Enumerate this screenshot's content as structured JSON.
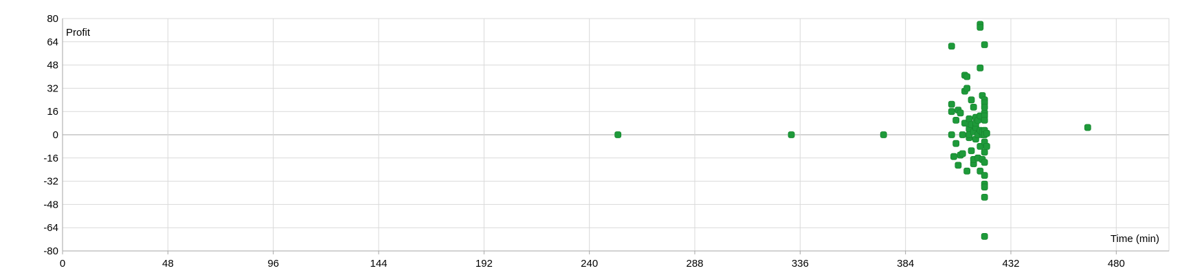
{
  "chart_data": {
    "type": "scatter",
    "title": "",
    "xlabel": "Time (min)",
    "ylabel": "Profit",
    "xlim": [
      0,
      504
    ],
    "ylim": [
      -80,
      80
    ],
    "x_ticks": [
      0,
      48,
      96,
      144,
      192,
      240,
      288,
      336,
      384,
      432,
      480
    ],
    "y_ticks": [
      80,
      64,
      48,
      32,
      16,
      0,
      -16,
      -32,
      -48,
      -64,
      -80
    ],
    "grid": true,
    "legend": "none",
    "marker_color": "#1e9a3a",
    "points": [
      {
        "x": 253,
        "y": 0
      },
      {
        "x": 332,
        "y": 0
      },
      {
        "x": 374,
        "y": 0
      },
      {
        "x": 405,
        "y": 61
      },
      {
        "x": 405,
        "y": 21
      },
      {
        "x": 405,
        "y": 16
      },
      {
        "x": 405,
        "y": 0
      },
      {
        "x": 406,
        "y": -15
      },
      {
        "x": 407,
        "y": 10
      },
      {
        "x": 407,
        "y": -6
      },
      {
        "x": 408,
        "y": 17
      },
      {
        "x": 408,
        "y": -21
      },
      {
        "x": 409,
        "y": 15
      },
      {
        "x": 409,
        "y": -14
      },
      {
        "x": 410,
        "y": 0
      },
      {
        "x": 410,
        "y": -13
      },
      {
        "x": 411,
        "y": 8
      },
      {
        "x": 411,
        "y": 30
      },
      {
        "x": 411,
        "y": 41
      },
      {
        "x": 412,
        "y": 32
      },
      {
        "x": 412,
        "y": -25
      },
      {
        "x": 412,
        "y": 40
      },
      {
        "x": 413,
        "y": 11
      },
      {
        "x": 413,
        "y": 4
      },
      {
        "x": 413,
        "y": -2
      },
      {
        "x": 413,
        "y": 0
      },
      {
        "x": 414,
        "y": 24
      },
      {
        "x": 414,
        "y": 7
      },
      {
        "x": 414,
        "y": -11
      },
      {
        "x": 415,
        "y": 19
      },
      {
        "x": 415,
        "y": 2
      },
      {
        "x": 415,
        "y": -20
      },
      {
        "x": 415,
        "y": -17
      },
      {
        "x": 416,
        "y": 12
      },
      {
        "x": 416,
        "y": 5
      },
      {
        "x": 416,
        "y": -3
      },
      {
        "x": 416,
        "y": 8
      },
      {
        "x": 417,
        "y": 0
      },
      {
        "x": 417,
        "y": -16
      },
      {
        "x": 417,
        "y": 10
      },
      {
        "x": 418,
        "y": 76
      },
      {
        "x": 418,
        "y": 74
      },
      {
        "x": 418,
        "y": 46
      },
      {
        "x": 418,
        "y": 13
      },
      {
        "x": 418,
        "y": 3
      },
      {
        "x": 418,
        "y": -8
      },
      {
        "x": 418,
        "y": -25
      },
      {
        "x": 419,
        "y": 27
      },
      {
        "x": 419,
        "y": 0
      },
      {
        "x": 419,
        "y": -17
      },
      {
        "x": 419,
        "y": 2
      },
      {
        "x": 420,
        "y": 15
      },
      {
        "x": 420,
        "y": -28
      },
      {
        "x": 420,
        "y": -34
      },
      {
        "x": 420,
        "y": -43
      },
      {
        "x": 420,
        "y": -70
      },
      {
        "x": 420,
        "y": 62
      },
      {
        "x": 420,
        "y": 24
      },
      {
        "x": 420,
        "y": 22
      },
      {
        "x": 420,
        "y": 19
      },
      {
        "x": 420,
        "y": 13
      },
      {
        "x": 420,
        "y": 10
      },
      {
        "x": 420,
        "y": 3
      },
      {
        "x": 420,
        "y": 0
      },
      {
        "x": 420,
        "y": -5
      },
      {
        "x": 420,
        "y": -12
      },
      {
        "x": 420,
        "y": -19
      },
      {
        "x": 420,
        "y": -36
      },
      {
        "x": 421,
        "y": 1
      },
      {
        "x": 421,
        "y": -8
      },
      {
        "x": 467,
        "y": 5
      }
    ]
  }
}
